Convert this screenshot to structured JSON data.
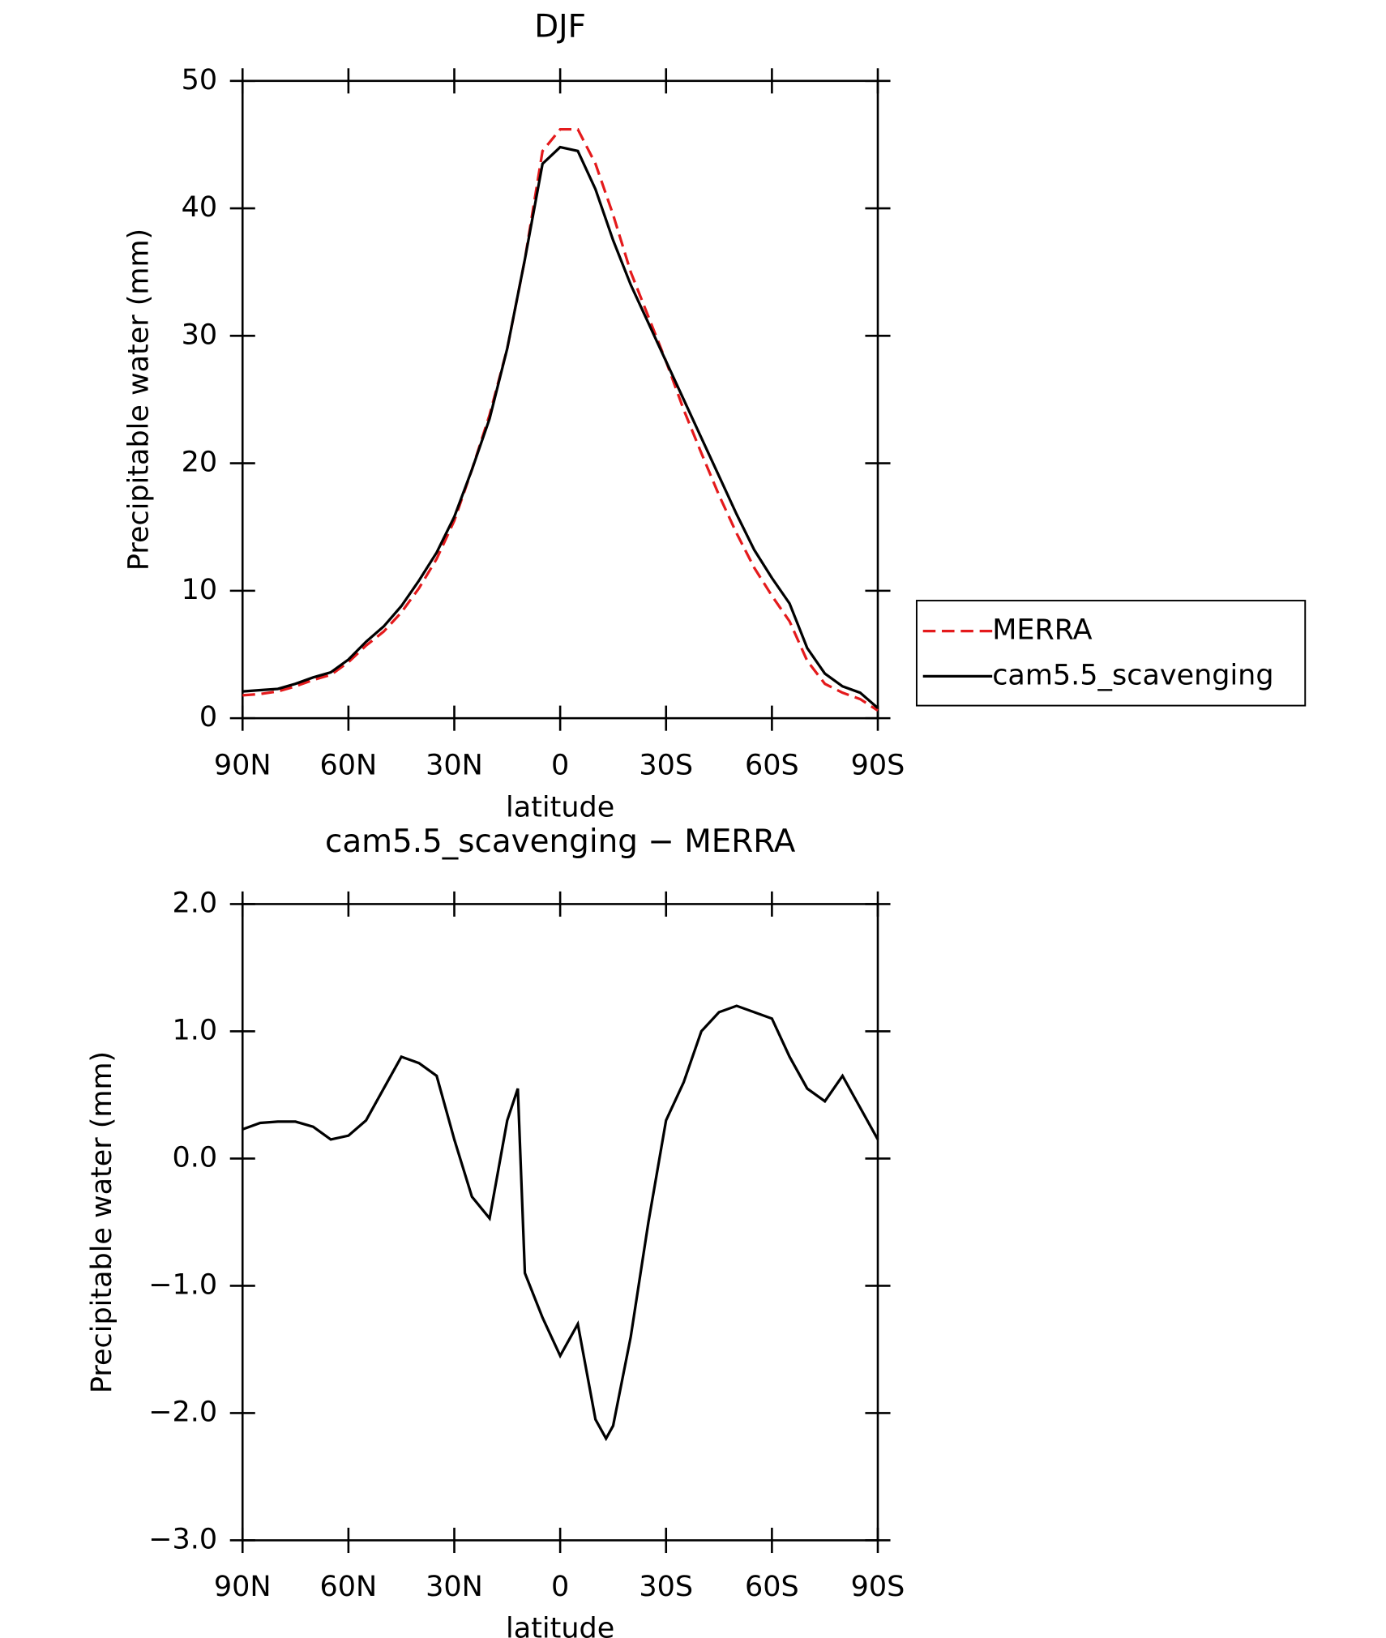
{
  "chart_data": [
    {
      "type": "line",
      "title": "DJF",
      "x_label": "latitude",
      "y_label": "Precipitable water (mm)",
      "x": [
        90,
        85,
        80,
        75,
        70,
        65,
        60,
        55,
        50,
        45,
        40,
        35,
        30,
        25,
        20,
        15,
        10,
        5,
        0,
        -5,
        -10,
        -15,
        -20,
        -25,
        -30,
        -35,
        -40,
        -45,
        -50,
        -55,
        -60,
        -65,
        -70,
        -75,
        -80,
        -85,
        -90
      ],
      "series": [
        {
          "name": "MERRA",
          "color": "#e41a1c",
          "linestyle": "dashed",
          "values": [
            1.8,
            1.9,
            2.1,
            2.5,
            3.0,
            3.4,
            4.4,
            5.7,
            6.8,
            8.3,
            10.2,
            12.5,
            15.5,
            19.5,
            23.8,
            29,
            36,
            44.5,
            46.2,
            46.2,
            43.5,
            39.5,
            35.0,
            31.5,
            28.0,
            24.2,
            20.8,
            17.5,
            14.5,
            11.8,
            9.6,
            7.6,
            4.5,
            2.7,
            2.0,
            1.5,
            0.6
          ]
        },
        {
          "name": "cam5.5_scavenging",
          "color": "#000000",
          "linestyle": "solid",
          "values": [
            2.1,
            2.2,
            2.3,
            2.7,
            3.2,
            3.6,
            4.6,
            6.0,
            7.2,
            8.8,
            10.8,
            13.0,
            15.8,
            19.5,
            23.5,
            29,
            36,
            43.5,
            44.8,
            44.5,
            41.5,
            37.5,
            34.0,
            31.0,
            28.0,
            25.0,
            22.0,
            19.0,
            16.0,
            13.2,
            11.0,
            9.0,
            5.5,
            3.5,
            2.5,
            2.0,
            0.8
          ]
        }
      ],
      "xlim": [
        90,
        -90
      ],
      "xticks": [
        {
          "value": 90,
          "label": "90N"
        },
        {
          "value": 60,
          "label": "60N"
        },
        {
          "value": 30,
          "label": "30N"
        },
        0,
        {
          "value": -30,
          "label": "30S"
        },
        {
          "value": -60,
          "label": "60S"
        },
        {
          "value": -90,
          "label": "90S"
        }
      ],
      "ylim": [
        0,
        50
      ],
      "yticks": [
        0,
        10,
        20,
        30,
        40,
        50
      ],
      "legend": "right"
    },
    {
      "type": "line",
      "title": "cam5.5_scavenging − MERRA",
      "x_label": "latitude",
      "y_label": "Precipitable water (mm)",
      "x": [
        90,
        85,
        80,
        75,
        70,
        65,
        60,
        55,
        50,
        45,
        40,
        35,
        30,
        25,
        20,
        15,
        12,
        10,
        5,
        0,
        -5,
        -10,
        -13,
        -15,
        -20,
        -25,
        -30,
        -35,
        -40,
        -45,
        -50,
        -55,
        -60,
        -65,
        -70,
        -75,
        -80,
        -85,
        -90
      ],
      "series": [
        {
          "name": "cam5.5_scavenging − MERRA",
          "color": "#000000",
          "linestyle": "solid",
          "values": [
            0.23,
            0.28,
            0.29,
            0.29,
            0.25,
            0.15,
            0.18,
            0.3,
            0.55,
            0.8,
            0.75,
            0.65,
            0.15,
            -0.3,
            -0.47,
            0.3,
            0.55,
            -0.9,
            -1.25,
            -1.55,
            -1.3,
            -2.05,
            -2.2,
            -2.1,
            -1.4,
            -0.5,
            0.3,
            0.6,
            1.0,
            1.15,
            1.2,
            1.15,
            1.1,
            0.8,
            0.55,
            0.45,
            0.65,
            0.4,
            0.15
          ]
        }
      ],
      "xlim": [
        90,
        -90
      ],
      "xticks": [
        {
          "value": 90,
          "label": "90N"
        },
        {
          "value": 60,
          "label": "60N"
        },
        {
          "value": 30,
          "label": "30N"
        },
        0,
        {
          "value": -30,
          "label": "30S"
        },
        {
          "value": -60,
          "label": "60S"
        },
        {
          "value": -90,
          "label": "90S"
        }
      ],
      "ylim": [
        -3,
        2
      ],
      "yticks": [
        {
          "value": -3,
          "label": "−3.0"
        },
        {
          "value": -2,
          "label": "−2.0"
        },
        {
          "value": -1,
          "label": "−1.0"
        },
        {
          "value": 0,
          "label": "0.0"
        },
        {
          "value": 1,
          "label": "1.0"
        },
        {
          "value": 2,
          "label": "2.0"
        }
      ]
    }
  ]
}
